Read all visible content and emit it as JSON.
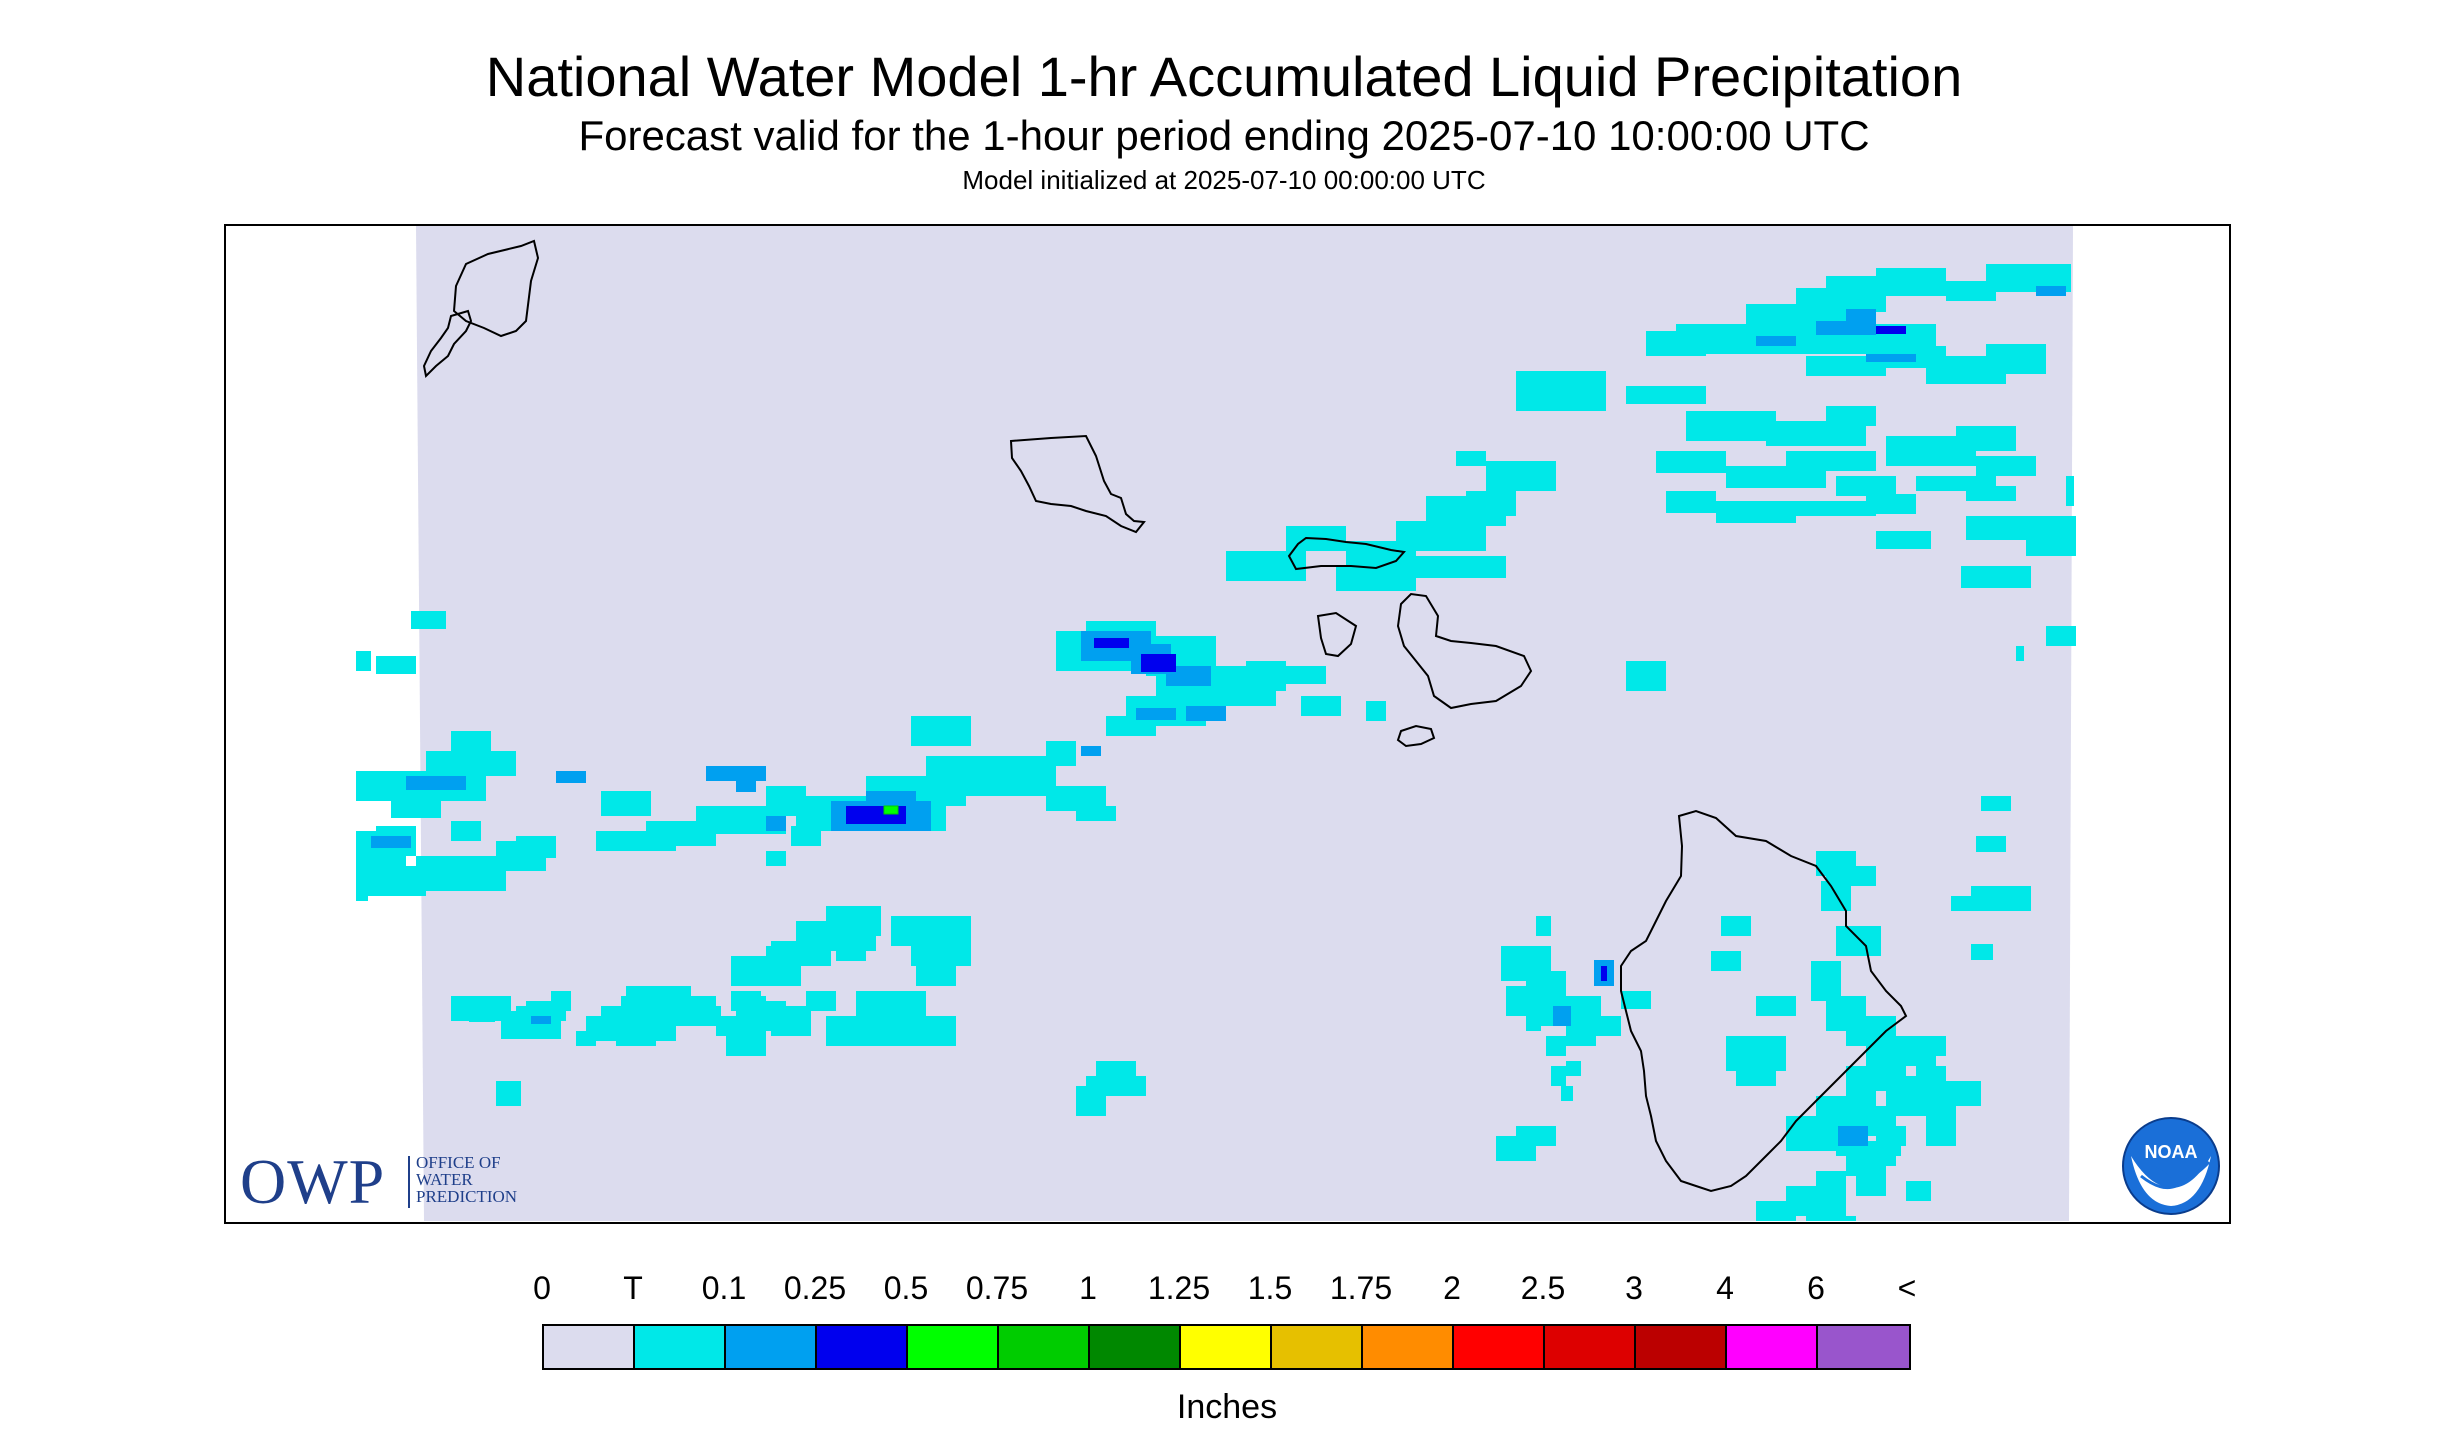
{
  "header": {
    "title": "National Water Model 1-hr Accumulated Liquid Precipitation",
    "subtitle": "Forecast valid for the 1-hour period ending 2025-07-10 10:00:00 UTC",
    "init_line": "Model initialized at 2025-07-10 00:00:00 UTC"
  },
  "logos": {
    "owp_big": "OWP",
    "owp_small_lines": [
      "OFFICE OF",
      "WATER",
      "PREDICTION"
    ],
    "noaa_text": "NOAA"
  },
  "legend": {
    "labels": [
      "0",
      "T",
      "0.1",
      "0.25",
      "0.5",
      "0.75",
      "1",
      "1.25",
      "1.5",
      "1.75",
      "2",
      "2.5",
      "3",
      "4",
      "6",
      "<"
    ],
    "colors": [
      "#dcdcee",
      "#00e8e8",
      "#00a0f0",
      "#0000ee",
      "#00ff00",
      "#00cc00",
      "#008800",
      "#ffff00",
      "#e6c000",
      "#ff8c00",
      "#ff0000",
      "#dd0000",
      "#bb0000",
      "#ff00ff",
      "#9955cc"
    ],
    "units": "Inches"
  },
  "map": {
    "background_color": "#dcdcee",
    "coastline_color": "#000000",
    "islands": [
      "Niihau",
      "Kauai",
      "Oahu",
      "Molokai",
      "Lanai",
      "Maui",
      "Kahoolawe",
      "Hawaii"
    ]
  }
}
